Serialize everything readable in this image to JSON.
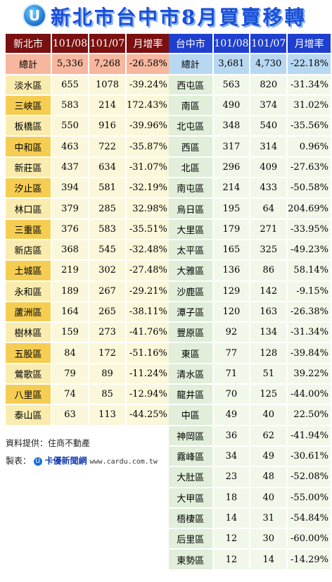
{
  "title": "新北市台中市8月買賣移轉",
  "logo_letter": "U",
  "left": {
    "headers": [
      "新北市",
      "101/08",
      "101/07",
      "月增率"
    ],
    "total": {
      "name": "總計",
      "a": "5,336",
      "b": "7,268",
      "rate": "-26.58%"
    },
    "rows": [
      {
        "name": "淡水區",
        "a": "655",
        "b": "1078",
        "rate": "-39.24%"
      },
      {
        "name": "三峽區",
        "a": "583",
        "b": "214",
        "rate": "172.43%"
      },
      {
        "name": "板橋區",
        "a": "550",
        "b": "916",
        "rate": "-39.96%"
      },
      {
        "name": "中和區",
        "a": "463",
        "b": "722",
        "rate": "-35.87%"
      },
      {
        "name": "新莊區",
        "a": "437",
        "b": "634",
        "rate": "-31.07%"
      },
      {
        "name": "汐止區",
        "a": "394",
        "b": "581",
        "rate": "-32.19%"
      },
      {
        "name": "林口區",
        "a": "379",
        "b": "285",
        "rate": "32.98%"
      },
      {
        "name": "三重區",
        "a": "376",
        "b": "583",
        "rate": "-35.51%"
      },
      {
        "name": "新店區",
        "a": "368",
        "b": "545",
        "rate": "-32.48%"
      },
      {
        "name": "土城區",
        "a": "219",
        "b": "302",
        "rate": "-27.48%"
      },
      {
        "name": "永和區",
        "a": "189",
        "b": "267",
        "rate": "-29.21%"
      },
      {
        "name": "蘆洲區",
        "a": "164",
        "b": "265",
        "rate": "-38.11%"
      },
      {
        "name": "樹林區",
        "a": "159",
        "b": "273",
        "rate": "-41.76%"
      },
      {
        "name": "五股區",
        "a": "84",
        "b": "172",
        "rate": "-51.16%"
      },
      {
        "name": "鶯歌區",
        "a": "79",
        "b": "89",
        "rate": "-11.24%"
      },
      {
        "name": "八里區",
        "a": "74",
        "b": "85",
        "rate": "-12.94%"
      },
      {
        "name": "泰山區",
        "a": "63",
        "b": "113",
        "rate": "-44.25%"
      }
    ]
  },
  "right": {
    "headers": [
      "台中市",
      "101/08",
      "101/07",
      "月增率"
    ],
    "total": {
      "name": "總計",
      "a": "3,681",
      "b": "4,730",
      "rate": "-22.18%"
    },
    "rows": [
      {
        "name": "西屯區",
        "a": "563",
        "b": "820",
        "rate": "-31.34%"
      },
      {
        "name": "南區",
        "a": "490",
        "b": "374",
        "rate": "31.02%"
      },
      {
        "name": "北屯區",
        "a": "348",
        "b": "540",
        "rate": "-35.56%"
      },
      {
        "name": "西區",
        "a": "317",
        "b": "314",
        "rate": "0.96%"
      },
      {
        "name": "北區",
        "a": "296",
        "b": "409",
        "rate": "-27.63%"
      },
      {
        "name": "南屯區",
        "a": "214",
        "b": "433",
        "rate": "-50.58%"
      },
      {
        "name": "烏日區",
        "a": "195",
        "b": "64",
        "rate": "204.69%"
      },
      {
        "name": "大里區",
        "a": "179",
        "b": "271",
        "rate": "-33.95%"
      },
      {
        "name": "太平區",
        "a": "165",
        "b": "325",
        "rate": "-49.23%"
      },
      {
        "name": "大雅區",
        "a": "136",
        "b": "86",
        "rate": "58.14%"
      },
      {
        "name": "沙鹿區",
        "a": "129",
        "b": "142",
        "rate": "-9.15%"
      },
      {
        "name": "潭子區",
        "a": "120",
        "b": "163",
        "rate": "-26.38%"
      },
      {
        "name": "豐原區",
        "a": "92",
        "b": "134",
        "rate": "-31.34%"
      },
      {
        "name": "東區",
        "a": "77",
        "b": "128",
        "rate": "-39.84%"
      },
      {
        "name": "清水區",
        "a": "71",
        "b": "51",
        "rate": "39.22%"
      },
      {
        "name": "龍井區",
        "a": "70",
        "b": "125",
        "rate": "-44.00%"
      },
      {
        "name": "中區",
        "a": "49",
        "b": "40",
        "rate": "22.50%"
      },
      {
        "name": "神岡區",
        "a": "36",
        "b": "62",
        "rate": "-41.94%"
      },
      {
        "name": "霧峰區",
        "a": "34",
        "b": "49",
        "rate": "-30.61%"
      },
      {
        "name": "大肚區",
        "a": "23",
        "b": "48",
        "rate": "-52.08%"
      },
      {
        "name": "大甲區",
        "a": "18",
        "b": "40",
        "rate": "-55.00%"
      },
      {
        "name": "梧棲區",
        "a": "14",
        "b": "31",
        "rate": "-54.84%"
      },
      {
        "name": "后里區",
        "a": "12",
        "b": "30",
        "rate": "-60.00%"
      },
      {
        "name": "東勢區",
        "a": "12",
        "b": "14",
        "rate": "-14.29%"
      }
    ]
  },
  "footer": {
    "source": "資料提供：住商不動產",
    "maker_label": "製表：",
    "maker_brand": "卡優新聞網",
    "maker_url": "www.cardu.com.tw"
  },
  "colors": {
    "left_header": "#7a1010",
    "right_header": "#1f3fcf",
    "title": "#1a4fd6"
  }
}
